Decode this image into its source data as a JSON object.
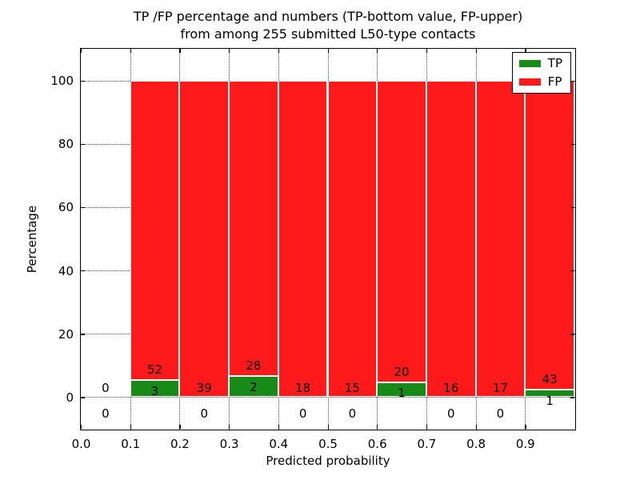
{
  "figure": {
    "title_line1": "TP /FP percentage and numbers (TP-bottom value, FP-upper)",
    "title_line2": "from among 255 submitted L50-type contacts",
    "xlabel": "Predicted probability",
    "ylabel": "Percentage"
  },
  "chart_data": {
    "type": "bar",
    "stacked": true,
    "title": "TP /FP percentage and numbers (TP-bottom value, FP-upper) from among 255 submitted L50-type contacts",
    "xlabel": "Predicted probability",
    "ylabel": "Percentage",
    "units": "percent of bin total (each non-empty bin stacks to 100%)",
    "total_contacts": 255,
    "xlim": [
      0.0,
      1.0
    ],
    "ylim": [
      -10,
      110
    ],
    "grid": "dotted",
    "legend_position": "upper right",
    "xticks": [
      "0.0",
      "0.1",
      "0.2",
      "0.3",
      "0.4",
      "0.5",
      "0.6",
      "0.7",
      "0.8",
      "0.9"
    ],
    "yticks": [
      "0",
      "20",
      "40",
      "60",
      "80",
      "100"
    ],
    "colors": {
      "tp": "#188a18",
      "fp": "#fe1a1a"
    },
    "legend": [
      {
        "label": "TP",
        "color": "#188a18"
      },
      {
        "label": "FP",
        "color": "#fe1a1a"
      }
    ],
    "bins": [
      {
        "x_start": 0.0,
        "x_end": 0.1,
        "tp": 0,
        "fp": 0
      },
      {
        "x_start": 0.1,
        "x_end": 0.2,
        "tp": 3,
        "fp": 52
      },
      {
        "x_start": 0.2,
        "x_end": 0.3,
        "tp": 0,
        "fp": 39
      },
      {
        "x_start": 0.3,
        "x_end": 0.4,
        "tp": 2,
        "fp": 28
      },
      {
        "x_start": 0.4,
        "x_end": 0.5,
        "tp": 0,
        "fp": 18
      },
      {
        "x_start": 0.5,
        "x_end": 0.6,
        "tp": 0,
        "fp": 15
      },
      {
        "x_start": 0.6,
        "x_end": 0.7,
        "tp": 1,
        "fp": 20
      },
      {
        "x_start": 0.7,
        "x_end": 0.8,
        "tp": 0,
        "fp": 16
      },
      {
        "x_start": 0.8,
        "x_end": 0.9,
        "tp": 0,
        "fp": 17
      },
      {
        "x_start": 0.9,
        "x_end": 1.0,
        "tp": 1,
        "fp": 43
      }
    ]
  }
}
